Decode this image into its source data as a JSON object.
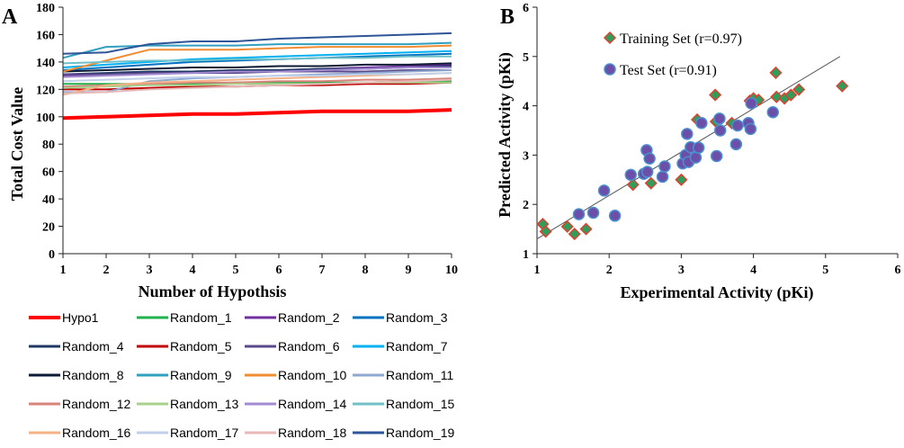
{
  "chart_data": [
    {
      "panel_label": "A",
      "type": "line",
      "xlabel": "Number of Hypothsis",
      "ylabel": "Total Cost Value",
      "x": [
        1,
        2,
        3,
        4,
        5,
        6,
        7,
        8,
        9,
        10
      ],
      "xlim": [
        1,
        10
      ],
      "ylim": [
        0,
        180
      ],
      "xticks": [
        "1",
        "2",
        "3",
        "4",
        "5",
        "6",
        "7",
        "8",
        "9",
        "10"
      ],
      "yticks": [
        "0",
        "20",
        "40",
        "60",
        "80",
        "100",
        "120",
        "140",
        "160",
        "180"
      ],
      "legend_position": "bottom",
      "series": [
        {
          "name": "Hypo1",
          "color": "#ff0000",
          "values": [
            99,
            100,
            101,
            102,
            102,
            103,
            104,
            104,
            104,
            105
          ]
        },
        {
          "name": "Random_1",
          "color": "#22b14c",
          "values": [
            124,
            124,
            124,
            124,
            125,
            125,
            125,
            125,
            126,
            126
          ]
        },
        {
          "name": "Random_2",
          "color": "#7030a0",
          "values": [
            130,
            131,
            132,
            133,
            134,
            134,
            135,
            136,
            137,
            138
          ]
        },
        {
          "name": "Random_3",
          "color": "#0070c0",
          "values": [
            134,
            136,
            138,
            140,
            141,
            142,
            143,
            144,
            145,
            146
          ]
        },
        {
          "name": "Random_4",
          "color": "#1f3864",
          "values": [
            131,
            132,
            133,
            133,
            134,
            134,
            135,
            135,
            136,
            137
          ]
        },
        {
          "name": "Random_5",
          "color": "#c00000",
          "values": [
            120,
            120,
            121,
            122,
            122,
            123,
            123,
            124,
            124,
            125
          ]
        },
        {
          "name": "Random_6",
          "color": "#5b4a8b",
          "values": [
            131,
            131,
            132,
            132,
            132,
            133,
            133,
            133,
            134,
            134
          ]
        },
        {
          "name": "Random_7",
          "color": "#00b0f0",
          "values": [
            136,
            138,
            140,
            142,
            143,
            144,
            145,
            146,
            147,
            148
          ]
        },
        {
          "name": "Random_8",
          "color": "#0d1a33",
          "values": [
            133,
            134,
            135,
            136,
            136,
            137,
            137,
            138,
            138,
            139
          ]
        },
        {
          "name": "Random_9",
          "color": "#31a0c0",
          "values": [
            143,
            151,
            152,
            152,
            152,
            153,
            153,
            153,
            153,
            154
          ]
        },
        {
          "name": "Random_10",
          "color": "#f08c32",
          "values": [
            133,
            141,
            149,
            149,
            149,
            150,
            151,
            151,
            151,
            152
          ]
        },
        {
          "name": "Random_11",
          "color": "#8fa8d0",
          "values": [
            118,
            118,
            126,
            128,
            129,
            130,
            131,
            132,
            133,
            134
          ]
        },
        {
          "name": "Random_12",
          "color": "#d9837a",
          "values": [
            122,
            123,
            124,
            125,
            125,
            126,
            126,
            127,
            127,
            128
          ]
        },
        {
          "name": "Random_13",
          "color": "#a9d18e",
          "values": [
            121,
            122,
            123,
            123,
            124,
            124,
            124,
            125,
            125,
            125
          ]
        },
        {
          "name": "Random_14",
          "color": "#a28bd0",
          "values": [
            129,
            130,
            131,
            132,
            133,
            133,
            134,
            135,
            136,
            136
          ]
        },
        {
          "name": "Random_15",
          "color": "#70c0c8",
          "values": [
            139,
            140,
            141,
            141,
            142,
            142,
            143,
            143,
            144,
            144
          ]
        },
        {
          "name": "Random_16",
          "color": "#f4b183",
          "values": [
            116,
            123,
            125,
            126,
            127,
            128,
            129,
            130,
            131,
            132
          ]
        },
        {
          "name": "Random_17",
          "color": "#c0d0ea",
          "values": [
            126,
            127,
            128,
            129,
            129,
            130,
            130,
            131,
            131,
            132
          ]
        },
        {
          "name": "Random_18",
          "color": "#e6b8b7",
          "values": [
            117,
            118,
            120,
            121,
            122,
            123,
            124,
            125,
            126,
            127
          ]
        },
        {
          "name": "Random_19",
          "color": "#2e5597",
          "values": [
            146,
            147,
            153,
            155,
            155,
            157,
            158,
            159,
            160,
            161
          ]
        }
      ]
    },
    {
      "panel_label": "B",
      "type": "scatter",
      "xlabel": "Experimental Activity (pKi)",
      "ylabel": "Predicted Activity (pKi)",
      "xlim": [
        1,
        6
      ],
      "ylim": [
        1,
        6
      ],
      "xticks": [
        "1",
        "2",
        "3",
        "4",
        "5",
        "6"
      ],
      "yticks": [
        "1",
        "2",
        "3",
        "4",
        "5",
        "6"
      ],
      "legend_position": "top-left",
      "trendline": {
        "x": [
          1,
          5.2
        ],
        "y": [
          1.3,
          5.0
        ]
      },
      "series": [
        {
          "name": "Training Set (r=0.97)",
          "marker": "diamond",
          "fill": "#2e9e5b",
          "edge": "#e0412f",
          "points": [
            [
              1.08,
              1.6
            ],
            [
              1.12,
              1.45
            ],
            [
              1.42,
              1.55
            ],
            [
              1.52,
              1.4
            ],
            [
              1.68,
              1.5
            ],
            [
              2.33,
              2.4
            ],
            [
              2.58,
              2.43
            ],
            [
              3.0,
              2.5
            ],
            [
              3.22,
              3.72
            ],
            [
              3.47,
              4.22
            ],
            [
              3.48,
              3.68
            ],
            [
              3.7,
              3.65
            ],
            [
              3.95,
              4.1
            ],
            [
              4.0,
              4.15
            ],
            [
              4.07,
              4.12
            ],
            [
              4.31,
              4.67
            ],
            [
              4.32,
              4.18
            ],
            [
              4.43,
              4.15
            ],
            [
              4.52,
              4.22
            ],
            [
              4.63,
              4.33
            ],
            [
              5.23,
              4.4
            ]
          ]
        },
        {
          "name": "Test Set (r=0.91)",
          "marker": "circle",
          "fill": "#6b4fa8",
          "edge": "#4a8fd0",
          "points": [
            [
              1.58,
              1.8
            ],
            [
              1.78,
              1.83
            ],
            [
              1.93,
              2.28
            ],
            [
              2.08,
              1.77
            ],
            [
              2.3,
              2.6
            ],
            [
              2.48,
              2.62
            ],
            [
              2.52,
              3.1
            ],
            [
              2.53,
              2.66
            ],
            [
              2.56,
              2.93
            ],
            [
              2.74,
              2.56
            ],
            [
              2.77,
              2.77
            ],
            [
              3.02,
              2.83
            ],
            [
              3.06,
              3.0
            ],
            [
              3.08,
              3.43
            ],
            [
              3.1,
              2.86
            ],
            [
              3.13,
              3.16
            ],
            [
              3.2,
              2.95
            ],
            [
              3.24,
              3.15
            ],
            [
              3.28,
              3.65
            ],
            [
              3.49,
              2.98
            ],
            [
              3.54,
              3.5
            ],
            [
              3.53,
              3.74
            ],
            [
              3.76,
              3.22
            ],
            [
              3.78,
              3.6
            ],
            [
              3.93,
              3.65
            ],
            [
              3.96,
              3.53
            ],
            [
              3.97,
              4.05
            ],
            [
              4.27,
              3.87
            ]
          ]
        }
      ]
    }
  ]
}
